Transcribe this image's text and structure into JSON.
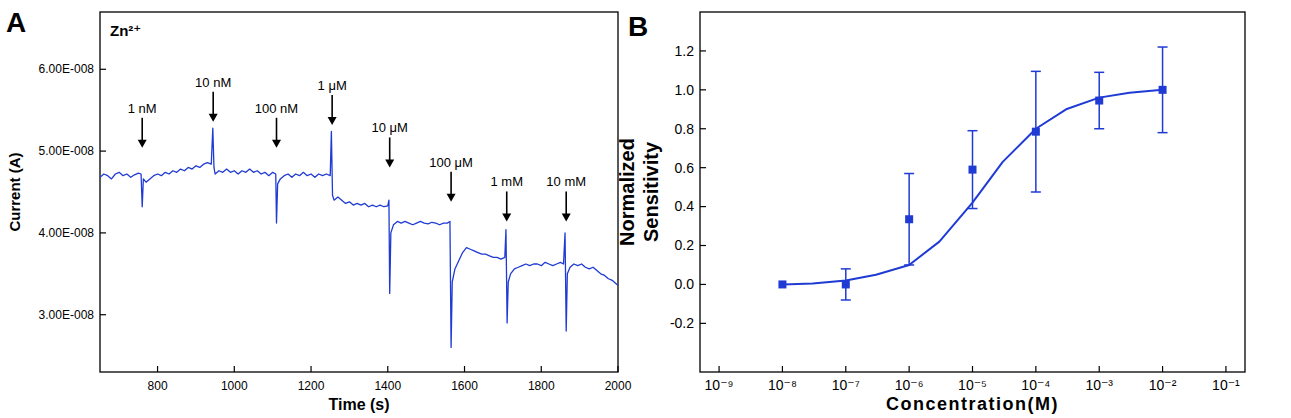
{
  "chart_data": [
    {
      "type": "line",
      "panel_label": "A",
      "subtitle": "Zn²⁺",
      "x_label": "Time (s)",
      "y_label": "Current (A)",
      "xlim": [
        650,
        2000
      ],
      "xticks": [
        800,
        1000,
        1200,
        1400,
        1600,
        1800,
        2000
      ],
      "ylim": [
        2.3e-08,
        6.7e-08
      ],
      "yticks": [
        {
          "value": 3e-08,
          "label": "3.00E-008"
        },
        {
          "value": 4e-08,
          "label": "4.00E-008"
        },
        {
          "value": 5e-08,
          "label": "5.00E-008"
        },
        {
          "value": 6e-08,
          "label": "6.00E-008"
        }
      ],
      "series": [
        {
          "color": "#1f3bd4",
          "x": [
            650,
            660,
            670,
            680,
            690,
            700,
            710,
            720,
            730,
            740,
            750,
            757,
            760,
            763,
            770,
            780,
            790,
            800,
            810,
            820,
            830,
            840,
            850,
            860,
            870,
            880,
            890,
            900,
            910,
            920,
            930,
            940,
            944,
            947,
            950,
            960,
            970,
            980,
            990,
            1000,
            1010,
            1020,
            1030,
            1040,
            1050,
            1060,
            1070,
            1080,
            1090,
            1100,
            1108,
            1110,
            1113,
            1120,
            1130,
            1140,
            1150,
            1160,
            1170,
            1180,
            1190,
            1200,
            1210,
            1220,
            1230,
            1240,
            1250,
            1253,
            1256,
            1260,
            1270,
            1280,
            1290,
            1300,
            1310,
            1320,
            1330,
            1340,
            1350,
            1360,
            1370,
            1380,
            1390,
            1400,
            1403,
            1405,
            1408,
            1415,
            1425,
            1435,
            1445,
            1455,
            1465,
            1475,
            1485,
            1495,
            1505,
            1515,
            1525,
            1535,
            1545,
            1555,
            1562,
            1565,
            1568,
            1575,
            1585,
            1595,
            1605,
            1615,
            1625,
            1635,
            1645,
            1655,
            1665,
            1675,
            1685,
            1695,
            1705,
            1708,
            1711,
            1714,
            1720,
            1730,
            1740,
            1750,
            1760,
            1770,
            1780,
            1790,
            1800,
            1810,
            1820,
            1830,
            1840,
            1850,
            1858,
            1862,
            1865,
            1868,
            1875,
            1885,
            1895,
            1905,
            1915,
            1925,
            1935,
            1945,
            1955,
            1965,
            1975,
            1985,
            1995,
            2000
          ],
          "values": [
            4.68e-08,
            4.72e-08,
            4.7e-08,
            4.66e-08,
            4.72e-08,
            4.74e-08,
            4.7e-08,
            4.72e-08,
            4.68e-08,
            4.71e-08,
            4.73e-08,
            4.72e-08,
            4.32e-08,
            4.66e-08,
            4.62e-08,
            4.66e-08,
            4.7e-08,
            4.72e-08,
            4.7e-08,
            4.74e-08,
            4.72e-08,
            4.76e-08,
            4.74e-08,
            4.78e-08,
            4.76e-08,
            4.8e-08,
            4.78e-08,
            4.82e-08,
            4.8e-08,
            4.84e-08,
            4.86e-08,
            4.84e-08,
            5.28e-08,
            4.8e-08,
            4.72e-08,
            4.76e-08,
            4.74e-08,
            4.78e-08,
            4.74e-08,
            4.76e-08,
            4.72e-08,
            4.76e-08,
            4.74e-08,
            4.78e-08,
            4.74e-08,
            4.76e-08,
            4.72e-08,
            4.74e-08,
            4.7e-08,
            4.74e-08,
            4.72e-08,
            4.12e-08,
            4.6e-08,
            4.66e-08,
            4.7e-08,
            4.72e-08,
            4.68e-08,
            4.72e-08,
            4.7e-08,
            4.74e-08,
            4.7e-08,
            4.72e-08,
            4.68e-08,
            4.72e-08,
            4.7e-08,
            4.72e-08,
            4.7e-08,
            5.24e-08,
            4.46e-08,
            4.4e-08,
            4.44e-08,
            4.4e-08,
            4.36e-08,
            4.38e-08,
            4.34e-08,
            4.36e-08,
            4.34e-08,
            4.36e-08,
            4.32e-08,
            4.34e-08,
            4.32e-08,
            4.34e-08,
            4.32e-08,
            4.33e-08,
            4.4e-08,
            3.26e-08,
            4e-08,
            4.1e-08,
            4.14e-08,
            4.12e-08,
            4.14e-08,
            4.12e-08,
            4.1e-08,
            4.12e-08,
            4.14e-08,
            4.12e-08,
            4.11e-08,
            4.13e-08,
            4.12e-08,
            4.1e-08,
            4.12e-08,
            4.12e-08,
            4.14e-08,
            2.6e-08,
            3.4e-08,
            3.56e-08,
            3.66e-08,
            3.76e-08,
            3.82e-08,
            3.8e-08,
            3.78e-08,
            3.76e-08,
            3.74e-08,
            3.74e-08,
            3.72e-08,
            3.7e-08,
            3.7e-08,
            3.68e-08,
            3.7e-08,
            4.04e-08,
            2.9e-08,
            3.4e-08,
            3.5e-08,
            3.56e-08,
            3.58e-08,
            3.6e-08,
            3.62e-08,
            3.6e-08,
            3.62e-08,
            3.62e-08,
            3.6e-08,
            3.64e-08,
            3.62e-08,
            3.6e-08,
            3.62e-08,
            3.64e-08,
            3.62e-08,
            4e-08,
            2.8e-08,
            3.5e-08,
            3.58e-08,
            3.62e-08,
            3.6e-08,
            3.62e-08,
            3.58e-08,
            3.56e-08,
            3.58e-08,
            3.54e-08,
            3.5e-08,
            3.48e-08,
            3.44e-08,
            3.42e-08,
            3.38e-08,
            3.36e-08
          ]
        }
      ],
      "annotations": [
        {
          "text": "1 nM",
          "x": 760,
          "y": 5.04e-08
        },
        {
          "text": "10 nM",
          "x": 945,
          "y": 5.36e-08
        },
        {
          "text": "100 nM",
          "x": 1110,
          "y": 5.04e-08
        },
        {
          "text": "1 μM",
          "x": 1255,
          "y": 5.32e-08
        },
        {
          "text": "10 μM",
          "x": 1405,
          "y": 4.8e-08
        },
        {
          "text": "100 μM",
          "x": 1565,
          "y": 4.38e-08
        },
        {
          "text": "1 mM",
          "x": 1710,
          "y": 4.14e-08
        },
        {
          "text": "10 mM",
          "x": 1865,
          "y": 4.14e-08
        }
      ]
    },
    {
      "type": "scatter",
      "panel_label": "B",
      "x_label": "Concentration(M)",
      "y_label": [
        "Normalized",
        "Sensitivity"
      ],
      "log": "x",
      "xlim": [
        5e-10,
        0.2
      ],
      "xticks": [
        {
          "value": 1e-09,
          "label": "10⁻⁹"
        },
        {
          "value": 1e-08,
          "label": "10⁻⁸"
        },
        {
          "value": 1e-07,
          "label": "10⁻⁷"
        },
        {
          "value": 1e-06,
          "label": "10⁻⁶"
        },
        {
          "value": 1e-05,
          "label": "10⁻⁵"
        },
        {
          "value": 0.0001,
          "label": "10⁻⁴"
        },
        {
          "value": 0.001,
          "label": "10⁻³"
        },
        {
          "value": 0.01,
          "label": "10⁻²"
        },
        {
          "value": 0.1,
          "label": "10⁻¹"
        }
      ],
      "ylim": [
        -0.45,
        1.4
      ],
      "yticks": [
        -0.2,
        {
          "value": 0,
          "label": "0.0"
        },
        0.2,
        0.4,
        0.6,
        0.8,
        {
          "value": 1,
          "label": "1.0"
        },
        1.2
      ],
      "series": [
        {
          "type": "scatter",
          "marker": "square",
          "color": "#1f3bd4",
          "x": [
            1e-08,
            1e-07,
            1e-06,
            1e-05,
            0.0001,
            0.001,
            0.01
          ],
          "values": [
            0,
            0,
            0.335,
            0.59,
            0.785,
            0.945,
            1.0
          ],
          "errors": [
            0,
            0.08,
            0.235,
            0.2,
            0.31,
            0.145,
            0.22
          ]
        },
        {
          "type": "line",
          "line_style": "solid",
          "color": "#1f3bd4",
          "x": [
            1e-08,
            3e-08,
            1e-07,
            3e-07,
            1e-06,
            3e-06,
            1e-05,
            3e-05,
            0.0001,
            0.0003,
            0.001,
            0.003,
            0.01
          ],
          "values": [
            0.0,
            0.005,
            0.02,
            0.05,
            0.1,
            0.22,
            0.42,
            0.63,
            0.8,
            0.9,
            0.96,
            0.985,
            1.0
          ]
        }
      ]
    }
  ]
}
